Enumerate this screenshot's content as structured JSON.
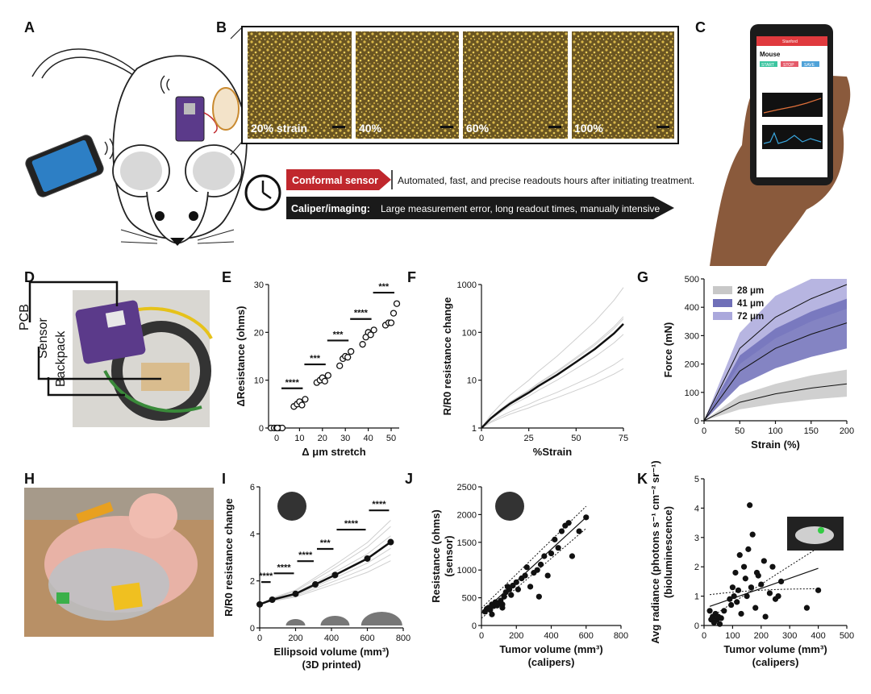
{
  "panels": {
    "a": "A",
    "b": "B",
    "c": "C",
    "d": "D",
    "e": "E",
    "f": "F",
    "g": "G",
    "h": "H",
    "i": "I",
    "j": "J",
    "k": "K"
  },
  "micrographs": [
    "20% strain",
    "40%",
    "60%",
    "100%"
  ],
  "comparison": {
    "conformal_label": "Conformal sensor",
    "conformal_text": "Automated, fast, and precise readouts hours after initiating treatment.",
    "caliper_label": "Caliper/imaging:",
    "caliper_text": "Large measurement error, long readout times, manually intensive"
  },
  "phone_app": {
    "header": "Stanford",
    "title": "Mouse",
    "buttons": [
      "START",
      "STOP",
      "SAVE"
    ]
  },
  "device_labels": [
    "PCB",
    "Sensor",
    "Backpack"
  ],
  "colors": {
    "conformal_red": "#c0272d",
    "caliper_black": "#1a1a1a",
    "band_28": "#c8c8c8",
    "band_41": "#6f6fb8",
    "band_72": "#aaa8dc",
    "pcb_purple": "#5b3a8a"
  },
  "chart_data": [
    {
      "panel": "E",
      "type": "scatter",
      "xlabel": "Δ μm stretch",
      "ylabel": "ΔResistance (ohms)",
      "x_ticks": [
        "0",
        "10",
        "20",
        "30",
        "40",
        "50"
      ],
      "y_ticks": [
        "0",
        "10",
        "20",
        "30"
      ],
      "ylim": [
        0,
        30
      ],
      "groups": [
        {
          "x": 0,
          "values": [
            0,
            0,
            0,
            0,
            0,
            0
          ]
        },
        {
          "x": 10,
          "values": [
            4.5,
            5.0,
            5.5,
            4.8,
            6.0
          ]
        },
        {
          "x": 20,
          "values": [
            9.5,
            10.0,
            10.5,
            9.8,
            11.0
          ]
        },
        {
          "x": 30,
          "values": [
            13.0,
            14.5,
            15.0,
            14.8,
            16.0
          ]
        },
        {
          "x": 40,
          "values": [
            17.5,
            19.0,
            20.0,
            19.5,
            20.5
          ]
        },
        {
          "x": 50,
          "values": [
            21.5,
            22.0,
            22.0,
            24.0,
            26.0
          ]
        }
      ],
      "significance": [
        "****",
        "***",
        "***",
        "****",
        "***"
      ]
    },
    {
      "panel": "F",
      "type": "line",
      "xlabel": "%Strain",
      "ylabel": "R/R0 resistance change",
      "x_ticks": [
        "0",
        "25",
        "50",
        "75"
      ],
      "y_ticks": [
        "1",
        "10",
        "100",
        "1000"
      ],
      "xlim": [
        0,
        75
      ],
      "ylim": [
        1,
        1000
      ],
      "yscale": "log",
      "mean": {
        "x": [
          0,
          5,
          10,
          15,
          20,
          25,
          30,
          40,
          50,
          60,
          70,
          75
        ],
        "y": [
          1,
          1.6,
          2.3,
          3.2,
          4.2,
          5.5,
          7.5,
          13,
          24,
          45,
          95,
          150
        ]
      }
    },
    {
      "panel": "G",
      "type": "area",
      "xlabel": "Strain (%)",
      "ylabel": "Force (mN)",
      "x_ticks": [
        "0",
        "50",
        "100",
        "150",
        "200"
      ],
      "y_ticks": [
        "0",
        "100",
        "200",
        "300",
        "400",
        "500"
      ],
      "xlim": [
        0,
        200
      ],
      "ylim": [
        0,
        500
      ],
      "series": [
        {
          "name": "28 μm",
          "x": [
            0,
            50,
            100,
            150,
            200
          ],
          "mean": [
            0,
            65,
            95,
            115,
            130
          ],
          "lower": [
            0,
            40,
            60,
            75,
            85
          ],
          "upper": [
            0,
            90,
            130,
            160,
            180
          ]
        },
        {
          "name": "41 μm",
          "x": [
            0,
            50,
            100,
            150,
            200
          ],
          "mean": [
            0,
            175,
            255,
            305,
            345
          ],
          "lower": [
            0,
            125,
            185,
            225,
            255
          ],
          "upper": [
            0,
            230,
            325,
            385,
            430
          ]
        },
        {
          "name": "72 μm",
          "x": [
            0,
            50,
            100,
            150,
            200
          ],
          "mean": [
            0,
            255,
            365,
            430,
            480
          ],
          "lower": [
            0,
            200,
            290,
            350,
            395
          ],
          "upper": [
            0,
            310,
            440,
            500,
            500
          ]
        }
      ]
    },
    {
      "panel": "I",
      "type": "line",
      "xlabel": "Ellipsoid volume (mm³)",
      "xlabel2": "(3D printed)",
      "ylabel": "R/R0 resistance change",
      "x_ticks": [
        "0",
        "200",
        "400",
        "600",
        "800"
      ],
      "y_ticks": [
        "0",
        "2",
        "4",
        "6"
      ],
      "xlim": [
        0,
        800
      ],
      "ylim": [
        0,
        6
      ],
      "mean": {
        "x": [
          0,
          70,
          200,
          310,
          420,
          600,
          730
        ],
        "y": [
          1.0,
          1.2,
          1.45,
          1.85,
          2.25,
          2.95,
          3.65
        ]
      },
      "significance": [
        "****",
        "****",
        "****",
        "***",
        "****",
        "****"
      ]
    },
    {
      "panel": "J",
      "type": "scatter",
      "xlabel": "Tumor volume (mm³)",
      "xlabel2": "(calipers)",
      "ylabel": "Resistance (ohms)",
      "ylabel2": "(sensor)",
      "x_ticks": [
        "0",
        "200",
        "400",
        "600",
        "800"
      ],
      "y_ticks": [
        "0",
        "500",
        "1000",
        "1500",
        "2000",
        "2500"
      ],
      "xlim": [
        0,
        800
      ],
      "ylim": [
        0,
        2500
      ],
      "fit": {
        "x": [
          0,
          600
        ],
        "y": [
          220,
          1950
        ]
      },
      "points": [
        [
          20,
          250
        ],
        [
          30,
          300
        ],
        [
          40,
          320
        ],
        [
          50,
          280
        ],
        [
          60,
          380
        ],
        [
          70,
          350
        ],
        [
          80,
          420
        ],
        [
          90,
          360
        ],
        [
          100,
          400
        ],
        [
          110,
          450
        ],
        [
          120,
          380
        ],
        [
          130,
          520
        ],
        [
          140,
          600
        ],
        [
          150,
          700
        ],
        [
          160,
          650
        ],
        [
          170,
          550
        ],
        [
          180,
          720
        ],
        [
          200,
          780
        ],
        [
          210,
          650
        ],
        [
          230,
          850
        ],
        [
          250,
          900
        ],
        [
          260,
          1050
        ],
        [
          280,
          700
        ],
        [
          300,
          950
        ],
        [
          320,
          1000
        ],
        [
          340,
          1100
        ],
        [
          360,
          1250
        ],
        [
          380,
          900
        ],
        [
          400,
          1300
        ],
        [
          420,
          1550
        ],
        [
          440,
          1400
        ],
        [
          460,
          1700
        ],
        [
          480,
          1800
        ],
        [
          500,
          1850
        ],
        [
          520,
          1250
        ],
        [
          560,
          1700
        ],
        [
          600,
          1950
        ],
        [
          330,
          520
        ],
        [
          120,
          320
        ],
        [
          60,
          200
        ]
      ]
    },
    {
      "panel": "K",
      "type": "scatter",
      "xlabel": "Tumor volume (mm³)",
      "xlabel2": "(calipers)",
      "ylabel": "Avg radiance (photons s⁻¹ cm⁻² sr⁻¹)",
      "ylabel2": "(bioluminescence)",
      "x_ticks": [
        "0",
        "100",
        "200",
        "300",
        "400",
        "500"
      ],
      "y_ticks": [
        "0",
        "1",
        "2",
        "3",
        "4",
        "5"
      ],
      "xlim": [
        0,
        500
      ],
      "ylim": [
        0,
        5
      ],
      "fit": {
        "x": [
          20,
          400
        ],
        "y": [
          0.65,
          1.95
        ]
      },
      "points": [
        [
          20,
          0.5
        ],
        [
          25,
          0.2
        ],
        [
          30,
          0.3
        ],
        [
          35,
          0.1
        ],
        [
          40,
          0.4
        ],
        [
          45,
          0.2
        ],
        [
          50,
          0.3
        ],
        [
          55,
          0.05
        ],
        [
          60,
          0.25
        ],
        [
          70,
          0.5
        ],
        [
          90,
          0.9
        ],
        [
          100,
          1.3
        ],
        [
          110,
          1.8
        ],
        [
          115,
          0.8
        ],
        [
          120,
          1.2
        ],
        [
          125,
          2.4
        ],
        [
          130,
          0.4
        ],
        [
          140,
          2.0
        ],
        [
          145,
          1.6
        ],
        [
          150,
          1.0
        ],
        [
          155,
          2.6
        ],
        [
          160,
          4.1
        ],
        [
          165,
          1.3
        ],
        [
          170,
          3.1
        ],
        [
          180,
          0.6
        ],
        [
          190,
          1.7
        ],
        [
          200,
          1.4
        ],
        [
          210,
          2.2
        ],
        [
          215,
          0.3
        ],
        [
          230,
          1.1
        ],
        [
          240,
          2.0
        ],
        [
          250,
          0.9
        ],
        [
          260,
          1.0
        ],
        [
          270,
          1.5
        ],
        [
          330,
          2.9
        ],
        [
          360,
          0.6
        ],
        [
          400,
          1.2
        ],
        [
          95,
          0.7
        ],
        [
          105,
          1.0
        ],
        [
          185,
          1.8
        ]
      ]
    }
  ]
}
